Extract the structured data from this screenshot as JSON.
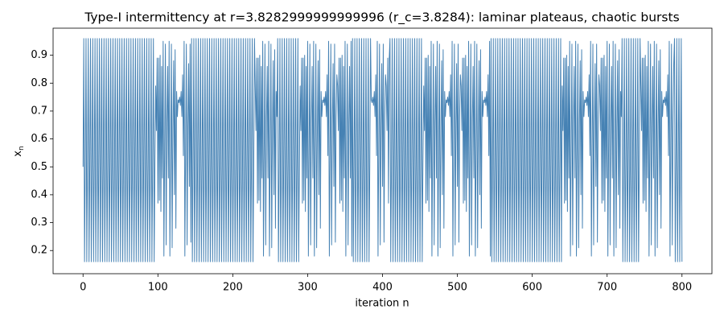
{
  "chart_data": {
    "type": "line",
    "title": "Type-I intermittency at r=3.8282999999999996 (r_c=3.8284): laminar plateaus, chaotic bursts",
    "xlabel": "iteration n",
    "ylabel_base": "x",
    "ylabel_subscript": "n",
    "xlim": [
      -40,
      840
    ],
    "ylim": [
      0.117,
      0.997
    ],
    "xticks": [
      0,
      100,
      200,
      300,
      400,
      500,
      600,
      700,
      800
    ],
    "yticks": [
      0.2,
      0.3,
      0.4,
      0.5,
      0.6,
      0.7,
      0.8,
      0.9
    ],
    "color": "#4682b4",
    "values": [
      0.5,
      0.96,
      0.16,
      0.51,
      0.96,
      0.16,
      0.51,
      0.96,
      0.16,
      0.51,
      0.96,
      0.16,
      0.51,
      0.96,
      0.16,
      0.51,
      0.96,
      0.16,
      0.51,
      0.96,
      0.16,
      0.51,
      0.96,
      0.16,
      0.51,
      0.96,
      0.16,
      0.51,
      0.96,
      0.16,
      0.51,
      0.96,
      0.16,
      0.51,
      0.96,
      0.16,
      0.51,
      0.96,
      0.16,
      0.51,
      0.96,
      0.16,
      0.51,
      0.96,
      0.16,
      0.51,
      0.96,
      0.16,
      0.51,
      0.96,
      0.16,
      0.51,
      0.96,
      0.16,
      0.51,
      0.96,
      0.16,
      0.51,
      0.96,
      0.16,
      0.51,
      0.96,
      0.16,
      0.51,
      0.96,
      0.16,
      0.51,
      0.96,
      0.16,
      0.51,
      0.96,
      0.16,
      0.51,
      0.96,
      0.16,
      0.51,
      0.96,
      0.16,
      0.51,
      0.96,
      0.16,
      0.51,
      0.96,
      0.16,
      0.51,
      0.96,
      0.16,
      0.51,
      0.96,
      0.16,
      0.51,
      0.96,
      0.16,
      0.51,
      0.96,
      0.16,
      0.51,
      0.79,
      0.63,
      0.89,
      0.37,
      0.89,
      0.38,
      0.9,
      0.34,
      0.86,
      0.46,
      0.95,
      0.18,
      0.57,
      0.94,
      0.22,
      0.66,
      0.86,
      0.46,
      0.95,
      0.18,
      0.56,
      0.94,
      0.21,
      0.64,
      0.88,
      0.4,
      0.92,
      0.28,
      0.77,
      0.68,
      0.74,
      0.73,
      0.75,
      0.72,
      0.77,
      0.68,
      0.83,
      0.54,
      0.95,
      0.18,
      0.57,
      0.94,
      0.22,
      0.65,
      0.87,
      0.43,
      0.94,
      0.23,
      0.96,
      0.16,
      0.51,
      0.96,
      0.16,
      0.51,
      0.96,
      0.16,
      0.51,
      0.96,
      0.16,
      0.51,
      0.96,
      0.16,
      0.51,
      0.96,
      0.16,
      0.51,
      0.96,
      0.16,
      0.51,
      0.96,
      0.16,
      0.51,
      0.96,
      0.16,
      0.51,
      0.96,
      0.16,
      0.51,
      0.96,
      0.16,
      0.51,
      0.96,
      0.16,
      0.51,
      0.96,
      0.16,
      0.51,
      0.96,
      0.16,
      0.51,
      0.96,
      0.16,
      0.51,
      0.96,
      0.16,
      0.51,
      0.96,
      0.16,
      0.51,
      0.96,
      0.16,
      0.51,
      0.96,
      0.16,
      0.51,
      0.96,
      0.16,
      0.51,
      0.96,
      0.16,
      0.51,
      0.96,
      0.16,
      0.51,
      0.96,
      0.16,
      0.51,
      0.96,
      0.16,
      0.51,
      0.96,
      0.16,
      0.51,
      0.96,
      0.16,
      0.51,
      0.96,
      0.16,
      0.51,
      0.96,
      0.16,
      0.51,
      0.96,
      0.79,
      0.63,
      0.89,
      0.37,
      0.89,
      0.38,
      0.9,
      0.34,
      0.86,
      0.46,
      0.95,
      0.18,
      0.57,
      0.94,
      0.22,
      0.66,
      0.86,
      0.46,
      0.95,
      0.18,
      0.56,
      0.94,
      0.21,
      0.64,
      0.88,
      0.4,
      0.92,
      0.28,
      0.77,
      0.68,
      0.96,
      0.16,
      0.51,
      0.96,
      0.16,
      0.51,
      0.96,
      0.16,
      0.51,
      0.96,
      0.16,
      0.51,
      0.96,
      0.16,
      0.51,
      0.96,
      0.16,
      0.51,
      0.96,
      0.16,
      0.51,
      0.96,
      0.16,
      0.51,
      0.96,
      0.16,
      0.51,
      0.96,
      0.16,
      0.51,
      0.79,
      0.63,
      0.89,
      0.37,
      0.89,
      0.38,
      0.9,
      0.34,
      0.86,
      0.46,
      0.95,
      0.18,
      0.57,
      0.94,
      0.22,
      0.66,
      0.86,
      0.46,
      0.95,
      0.18,
      0.56,
      0.94,
      0.21,
      0.64,
      0.88,
      0.4,
      0.92,
      0.28,
      0.77,
      0.68,
      0.74,
      0.73,
      0.75,
      0.72,
      0.77,
      0.68,
      0.83,
      0.54,
      0.95,
      0.18,
      0.57,
      0.94,
      0.22,
      0.65,
      0.87,
      0.43,
      0.94,
      0.23,
      0.68,
      0.83,
      0.79,
      0.63,
      0.89,
      0.37,
      0.89,
      0.38,
      0.9,
      0.34,
      0.86,
      0.46,
      0.95,
      0.18,
      0.57,
      0.94,
      0.22,
      0.66,
      0.86,
      0.46,
      0.95,
      0.18,
      0.96,
      0.16,
      0.51,
      0.96,
      0.16,
      0.51,
      0.96,
      0.16,
      0.51,
      0.96,
      0.16,
      0.51,
      0.96,
      0.16,
      0.51,
      0.96,
      0.16,
      0.51,
      0.96,
      0.16,
      0.51,
      0.96,
      0.16,
      0.51,
      0.96,
      0.74,
      0.73,
      0.75,
      0.72,
      0.77,
      0.68,
      0.83,
      0.54,
      0.95,
      0.18,
      0.57,
      0.94,
      0.22,
      0.65,
      0.87,
      0.43,
      0.94,
      0.23,
      0.68,
      0.83,
      0.79,
      0.63,
      0.89,
      0.37,
      0.89,
      0.96,
      0.16,
      0.51,
      0.96,
      0.16,
      0.51,
      0.96,
      0.16,
      0.51,
      0.96,
      0.16,
      0.51,
      0.96,
      0.16,
      0.51,
      0.96,
      0.16,
      0.51,
      0.96,
      0.16,
      0.51,
      0.96,
      0.16,
      0.51,
      0.96,
      0.16,
      0.51,
      0.96,
      0.16,
      0.51,
      0.96,
      0.16,
      0.51,
      0.96,
      0.16,
      0.51,
      0.96,
      0.16,
      0.51,
      0.96,
      0.16,
      0.51,
      0.96,
      0.16,
      0.51,
      0.79,
      0.63,
      0.89,
      0.37,
      0.89,
      0.38,
      0.9,
      0.34,
      0.86,
      0.46,
      0.95,
      0.18,
      0.57,
      0.94,
      0.22,
      0.66,
      0.86,
      0.46,
      0.95,
      0.18,
      0.56,
      0.94,
      0.21,
      0.64,
      0.88,
      0.4,
      0.92,
      0.28,
      0.77,
      0.68,
      0.74,
      0.73,
      0.75,
      0.72,
      0.77,
      0.68,
      0.83,
      0.54,
      0.95,
      0.18,
      0.57,
      0.94,
      0.22,
      0.65,
      0.87,
      0.43,
      0.94,
      0.23,
      0.68,
      0.83,
      0.79,
      0.63,
      0.89,
      0.37,
      0.89,
      0.38,
      0.9,
      0.34,
      0.86,
      0.46,
      0.95,
      0.18,
      0.57,
      0.94,
      0.22,
      0.66,
      0.86,
      0.46,
      0.95,
      0.18,
      0.56,
      0.94,
      0.21,
      0.64,
      0.88,
      0.4,
      0.92,
      0.28,
      0.77,
      0.68,
      0.74,
      0.73,
      0.75,
      0.72,
      0.77,
      0.68,
      0.83,
      0.54,
      0.95,
      0.18,
      0.96,
      0.16,
      0.51,
      0.96,
      0.16,
      0.51,
      0.96,
      0.16,
      0.51,
      0.96,
      0.16,
      0.51,
      0.96,
      0.16,
      0.51,
      0.96,
      0.16,
      0.51,
      0.96,
      0.16,
      0.51,
      0.96,
      0.16,
      0.51,
      0.96,
      0.16,
      0.51,
      0.96,
      0.16,
      0.51,
      0.96,
      0.16,
      0.51,
      0.96,
      0.16,
      0.51,
      0.96,
      0.16,
      0.51,
      0.96,
      0.16,
      0.51,
      0.96,
      0.16,
      0.51,
      0.96,
      0.16,
      0.51,
      0.96,
      0.16,
      0.51,
      0.96,
      0.16,
      0.51,
      0.96,
      0.16,
      0.51,
      0.96,
      0.16,
      0.51,
      0.96,
      0.16,
      0.51,
      0.96,
      0.16,
      0.51,
      0.96,
      0.16,
      0.51,
      0.96,
      0.16,
      0.51,
      0.96,
      0.16,
      0.51,
      0.96,
      0.16,
      0.51,
      0.96,
      0.16,
      0.51,
      0.96,
      0.16,
      0.51,
      0.96,
      0.16,
      0.51,
      0.96,
      0.16,
      0.51,
      0.96,
      0.16,
      0.51,
      0.96,
      0.16,
      0.79,
      0.63,
      0.89,
      0.37,
      0.89,
      0.38,
      0.9,
      0.34,
      0.86,
      0.46,
      0.95,
      0.18,
      0.57,
      0.94,
      0.22,
      0.66,
      0.86,
      0.46,
      0.95,
      0.18,
      0.56,
      0.94,
      0.21,
      0.64,
      0.88,
      0.4,
      0.92,
      0.28,
      0.77,
      0.68,
      0.74,
      0.73,
      0.75,
      0.72,
      0.77,
      0.68,
      0.83,
      0.54,
      0.95,
      0.18,
      0.57,
      0.94,
      0.22,
      0.65,
      0.87,
      0.43,
      0.94,
      0.23,
      0.68,
      0.83,
      0.79,
      0.63,
      0.89,
      0.37,
      0.89,
      0.38,
      0.9,
      0.34,
      0.86,
      0.46,
      0.95,
      0.18,
      0.57,
      0.94,
      0.22,
      0.66,
      0.86,
      0.46,
      0.95,
      0.18,
      0.56,
      0.94,
      0.21,
      0.64,
      0.88,
      0.4,
      0.92,
      0.28,
      0.77,
      0.68,
      0.96,
      0.16,
      0.51,
      0.96,
      0.16,
      0.51,
      0.96,
      0.16,
      0.51,
      0.96,
      0.16,
      0.51,
      0.96,
      0.16,
      0.51,
      0.96,
      0.16,
      0.51,
      0.96,
      0.16,
      0.51,
      0.96,
      0.16,
      0.51,
      0.96,
      0.79,
      0.63,
      0.89,
      0.37,
      0.89,
      0.38,
      0.9,
      0.34,
      0.86,
      0.46,
      0.95,
      0.18,
      0.57,
      0.94,
      0.22,
      0.66,
      0.86,
      0.46,
      0.95,
      0.18,
      0.56,
      0.94,
      0.21,
      0.64,
      0.88,
      0.4,
      0.92,
      0.28,
      0.77,
      0.68,
      0.74,
      0.73,
      0.75,
      0.72,
      0.77,
      0.68,
      0.83,
      0.54,
      0.95,
      0.18,
      0.57,
      0.94,
      0.22,
      0.65,
      0.87,
      0.96,
      0.16,
      0.51,
      0.96,
      0.16,
      0.51,
      0.96,
      0.16,
      0.51,
      0.96,
      0.16
    ]
  }
}
